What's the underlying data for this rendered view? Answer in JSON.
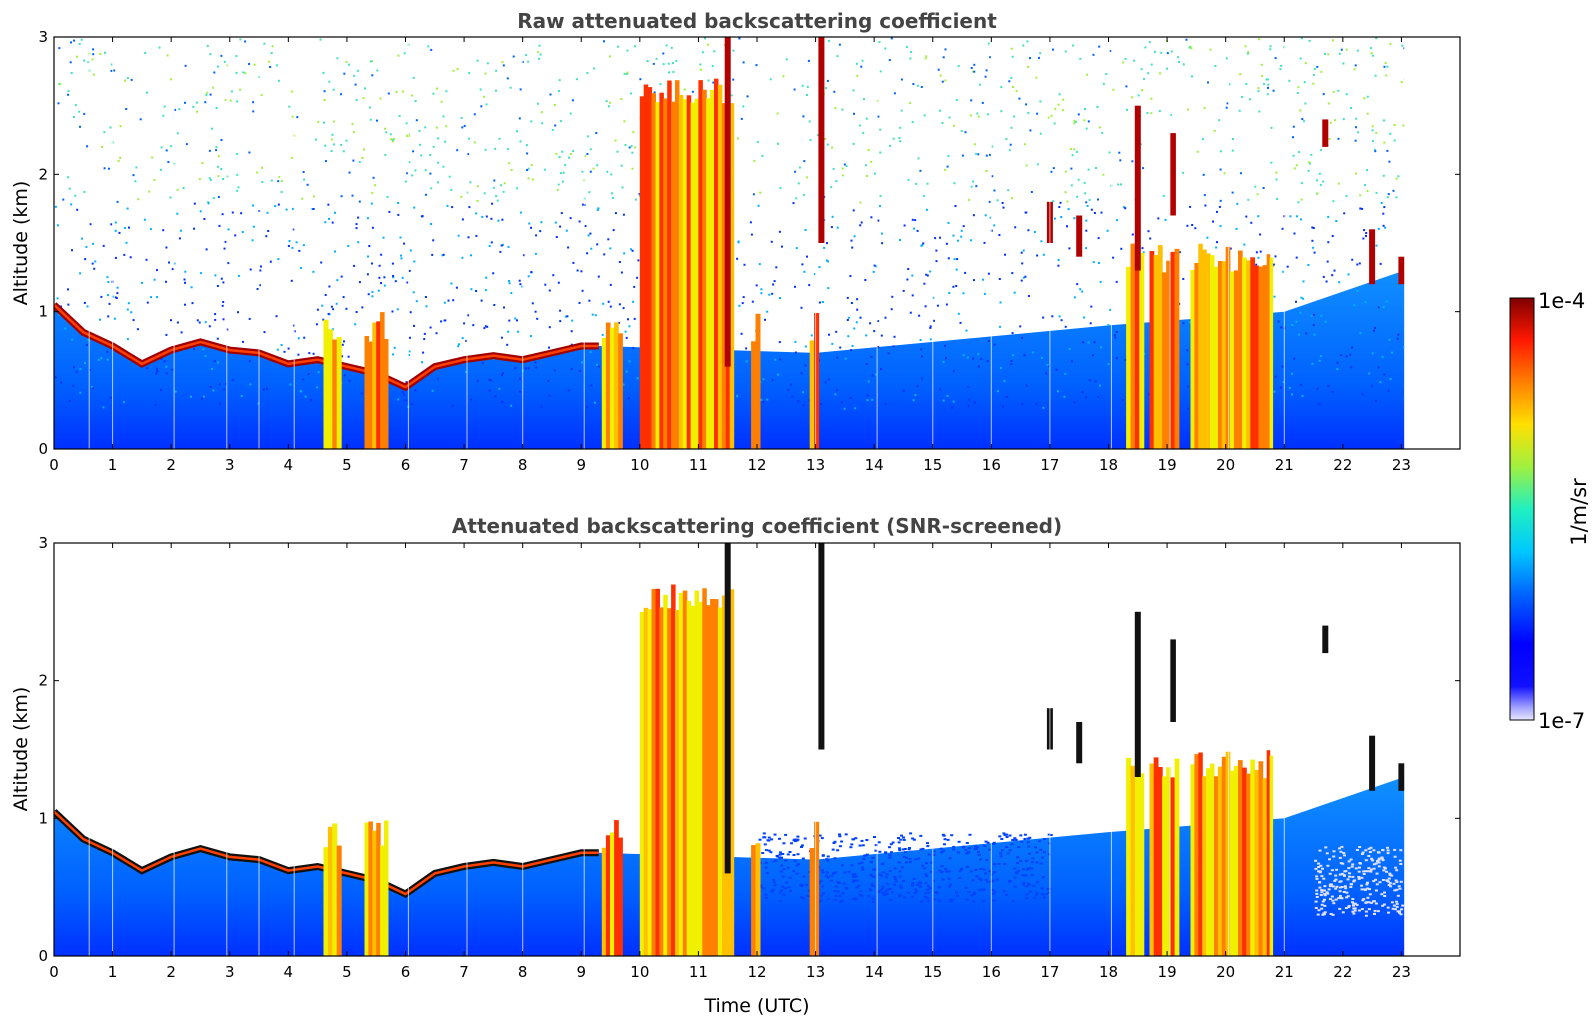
{
  "chart_data": [
    {
      "type": "heatmap",
      "title": "Raw attenuated backscattering coefficient",
      "xlabel": "",
      "ylabel": "Altitude (km)",
      "xlim": [
        0,
        24
      ],
      "ylim": [
        0,
        3
      ],
      "xticks": [
        "0",
        "1",
        "2",
        "3",
        "4",
        "5",
        "6",
        "7",
        "8",
        "9",
        "10",
        "11",
        "12",
        "13",
        "14",
        "15",
        "16",
        "17",
        "18",
        "19",
        "20",
        "21",
        "22",
        "23"
      ],
      "yticks": [
        "0",
        "1",
        "2",
        "3"
      ],
      "data_end_time": 23.05,
      "screened": false,
      "features": {
        "boundary_layer_top_km": [
          [
            0,
            1.05
          ],
          [
            0.5,
            0.85
          ],
          [
            1,
            0.75
          ],
          [
            1.5,
            0.62
          ],
          [
            2,
            0.72
          ],
          [
            2.5,
            0.78
          ],
          [
            3,
            0.72
          ],
          [
            3.5,
            0.7
          ],
          [
            4,
            0.62
          ],
          [
            4.5,
            0.65
          ],
          [
            5,
            0.6
          ],
          [
            5.5,
            0.55
          ],
          [
            6,
            0.45
          ],
          [
            6.5,
            0.6
          ],
          [
            7,
            0.65
          ],
          [
            7.5,
            0.68
          ],
          [
            8,
            0.65
          ],
          [
            8.5,
            0.7
          ],
          [
            9,
            0.75
          ],
          [
            9.3,
            0.75
          ]
        ],
        "precipitation_shafts_h": [
          [
            4.6,
            4.9
          ],
          [
            5.3,
            5.7
          ],
          [
            9.35,
            9.7
          ],
          [
            10,
            10.4
          ],
          [
            10.4,
            11.6
          ],
          [
            11.9,
            12.05
          ],
          [
            12.9,
            13.05
          ],
          [
            18.3,
            18.6
          ],
          [
            18.7,
            19.2
          ],
          [
            19.4,
            20.0
          ],
          [
            20.0,
            20.7
          ],
          [
            20.7,
            20.8
          ]
        ],
        "cloud_streaks": [
          [
            11.5,
            3.0,
            0.6
          ],
          [
            13.1,
            3.0,
            1.5
          ],
          [
            17.0,
            1.8,
            1.5
          ],
          [
            17.5,
            1.7,
            1.4
          ],
          [
            18.5,
            2.5,
            1.3
          ],
          [
            19.1,
            2.3,
            1.7
          ],
          [
            21.7,
            2.4,
            2.2
          ],
          [
            22.5,
            1.6,
            1.2
          ],
          [
            23.0,
            1.4,
            1.2
          ]
        ]
      }
    },
    {
      "type": "heatmap",
      "title": "Attenuated backscattering coefficient (SNR-screened)",
      "xlabel": "Time (UTC)",
      "ylabel": "Altitude (km)",
      "xlim": [
        0,
        24
      ],
      "ylim": [
        0,
        3
      ],
      "xticks": [
        "0",
        "1",
        "2",
        "3",
        "4",
        "5",
        "6",
        "7",
        "8",
        "9",
        "10",
        "11",
        "12",
        "13",
        "14",
        "15",
        "16",
        "17",
        "18",
        "19",
        "20",
        "21",
        "22",
        "23"
      ],
      "yticks": [
        "0",
        "1",
        "2",
        "3"
      ],
      "data_end_time": 23.05,
      "screened": true
    }
  ],
  "colorbar": {
    "label": "1/m/sr",
    "max_label": "1e-4",
    "min_label": "1e-7",
    "scale": "log",
    "range": [
      1e-07,
      0.0001
    ],
    "colormap": "jet"
  },
  "colors": {
    "title": "#444444",
    "background": "#ffffff"
  }
}
